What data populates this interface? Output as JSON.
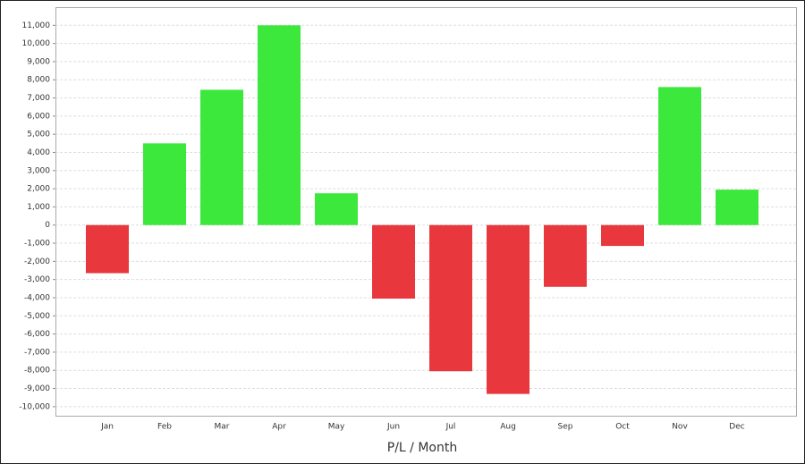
{
  "chart_data": {
    "type": "bar",
    "x_label": "P/L / Month",
    "categories": [
      "Jan",
      "Feb",
      "Mar",
      "Apr",
      "May",
      "Jun",
      "Jul",
      "Aug",
      "Sep",
      "Oct",
      "Nov",
      "Dec"
    ],
    "values": [
      -2650,
      4500,
      7450,
      11000,
      1750,
      -4050,
      -8050,
      -9300,
      -3400,
      -1150,
      7600,
      1950
    ],
    "positive_color": "#3de83d",
    "negative_color": "#e8383d",
    "ylim": [
      -10500,
      12000
    ],
    "yticks": [
      {
        "value": -10000,
        "label": "-10,000"
      },
      {
        "value": -9000,
        "label": "-9,000"
      },
      {
        "value": -8000,
        "label": "-8,000"
      },
      {
        "value": -7000,
        "label": "-7,000"
      },
      {
        "value": -6000,
        "label": "-6,000"
      },
      {
        "value": -5000,
        "label": "-5,000"
      },
      {
        "value": -4000,
        "label": "-4,000"
      },
      {
        "value": -3000,
        "label": "-3,000"
      },
      {
        "value": -2000,
        "label": "-2,000"
      },
      {
        "value": -1000,
        "label": "-1,000"
      },
      0,
      {
        "value": 1000,
        "label": "1,000"
      },
      {
        "value": 2000,
        "label": "2,000"
      },
      {
        "value": 3000,
        "label": "3,000"
      },
      {
        "value": 4000,
        "label": "4,000"
      },
      {
        "value": 5000,
        "label": "5,000"
      },
      {
        "value": 6000,
        "label": "6,000"
      },
      {
        "value": 7000,
        "label": "7,000"
      },
      {
        "value": 8000,
        "label": "8,000"
      },
      {
        "value": 9000,
        "label": "9,000"
      },
      {
        "value": 10000,
        "label": "10,000"
      },
      {
        "value": 11000,
        "label": "11,000"
      }
    ],
    "grid": true
  }
}
